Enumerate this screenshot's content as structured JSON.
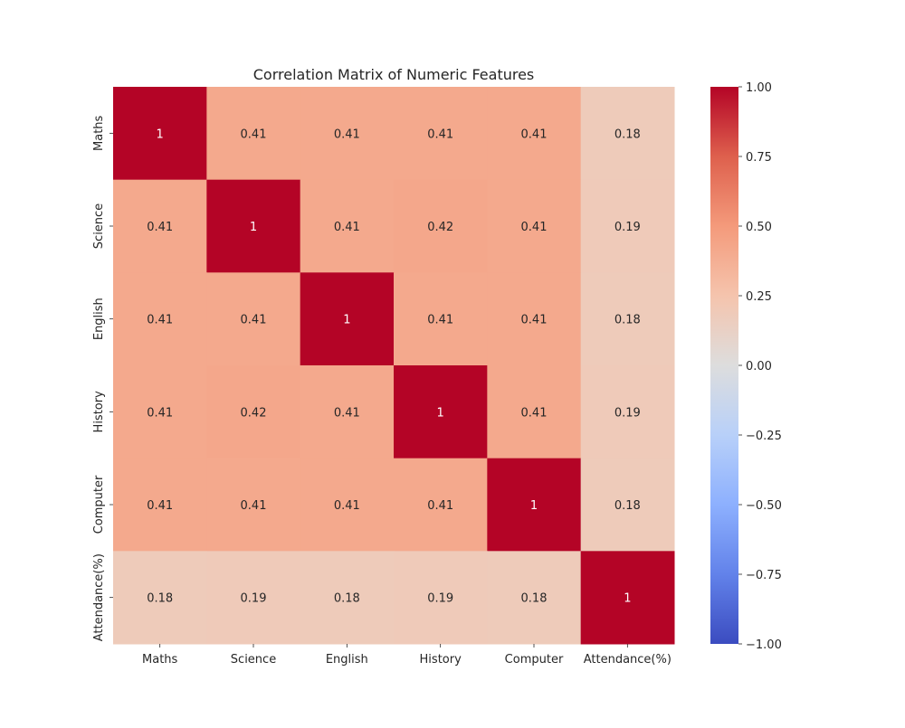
{
  "chart_data": {
    "type": "heatmap",
    "title": "Correlation Matrix of Numeric Features",
    "xlabel": "",
    "ylabel": "",
    "x_labels": [
      "Maths",
      "Science",
      "English",
      "History",
      "Computer",
      "Attendance(%)"
    ],
    "y_labels": [
      "Maths",
      "Science",
      "English",
      "History",
      "Computer",
      "Attendance(%)"
    ],
    "values": [
      [
        1,
        0.41,
        0.41,
        0.41,
        0.41,
        0.18
      ],
      [
        0.41,
        1,
        0.41,
        0.42,
        0.41,
        0.19
      ],
      [
        0.41,
        0.41,
        1,
        0.41,
        0.41,
        0.18
      ],
      [
        0.41,
        0.42,
        0.41,
        1,
        0.41,
        0.19
      ],
      [
        0.41,
        0.41,
        0.41,
        0.41,
        1,
        0.18
      ],
      [
        0.18,
        0.19,
        0.18,
        0.19,
        0.18,
        1
      ]
    ],
    "annotations": [
      [
        "1",
        "0.41",
        "0.41",
        "0.41",
        "0.41",
        "0.18"
      ],
      [
        "0.41",
        "1",
        "0.41",
        "0.42",
        "0.41",
        "0.19"
      ],
      [
        "0.41",
        "0.41",
        "1",
        "0.41",
        "0.41",
        "0.18"
      ],
      [
        "0.41",
        "0.42",
        "0.41",
        "1",
        "0.41",
        "0.19"
      ],
      [
        "0.41",
        "0.41",
        "0.41",
        "0.41",
        "1",
        "0.18"
      ],
      [
        "0.18",
        "0.19",
        "0.18",
        "0.19",
        "0.18",
        "1"
      ]
    ],
    "colormap": "coolwarm",
    "colorbar": {
      "range": [
        -1.0,
        1.0
      ],
      "ticks": [
        1.0,
        0.75,
        0.5,
        0.25,
        0.0,
        -0.25,
        -0.5,
        -0.75,
        -1.0
      ],
      "tick_labels": [
        "1.00",
        "0.75",
        "0.50",
        "0.25",
        "0.00",
        "−0.25",
        "−0.50",
        "−0.75",
        "−1.00"
      ]
    },
    "grid": false,
    "legend": "none",
    "colors": {
      "high": "#b40426",
      "mid": "#dddddd",
      "low": "#3b4cc0"
    }
  }
}
